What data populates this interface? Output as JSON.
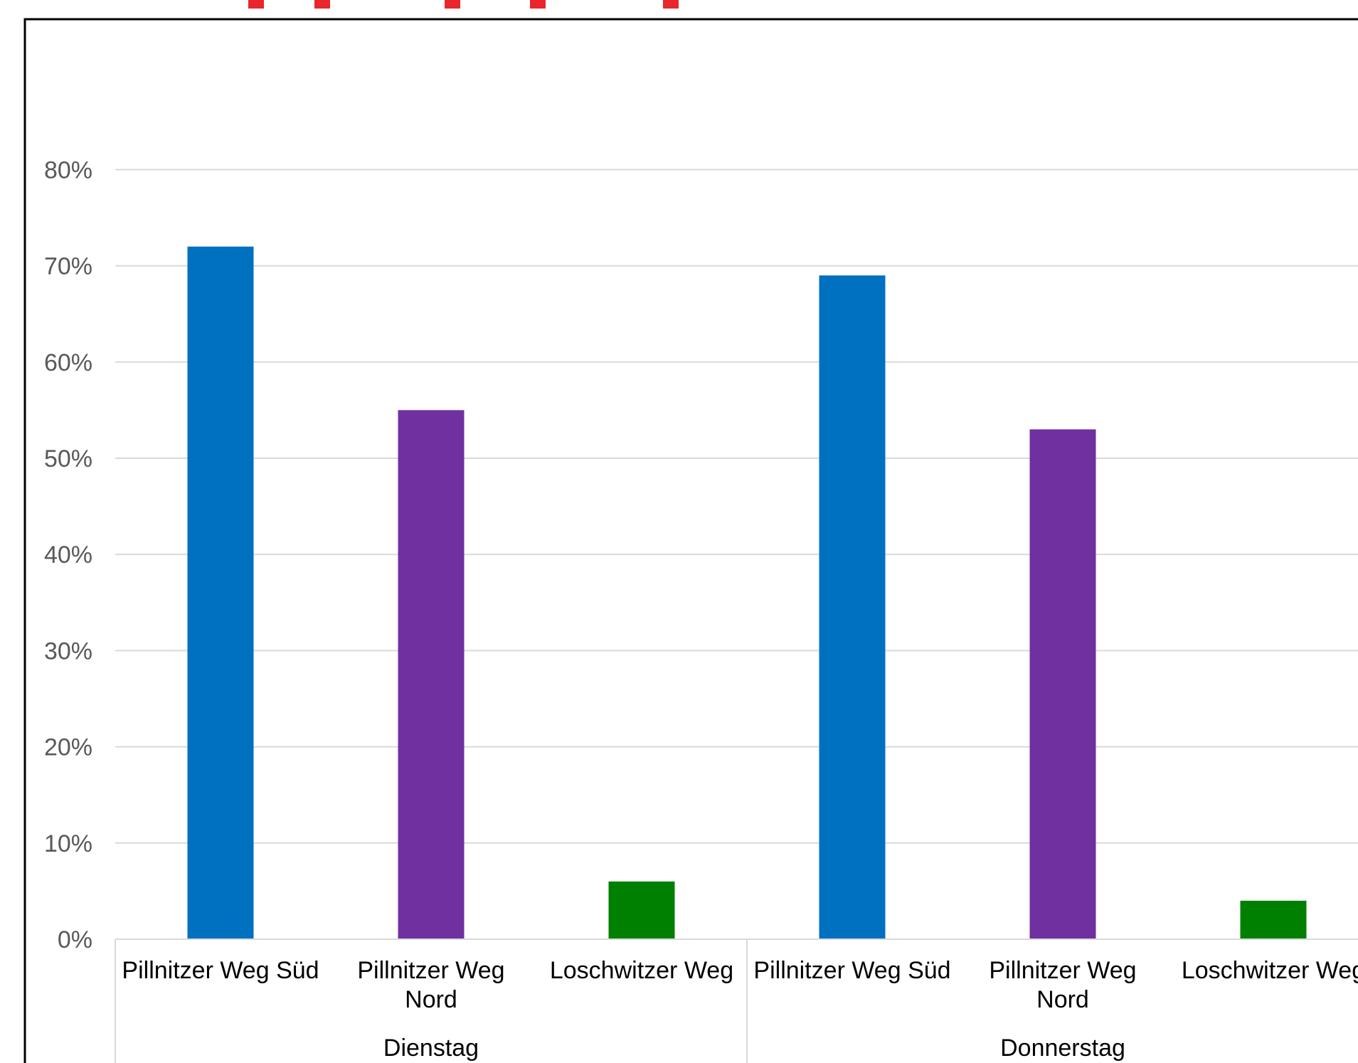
{
  "chart_data": {
    "type": "bar",
    "title": "",
    "xlabel": "",
    "ylabel": "",
    "ylim": [
      0,
      0.9
    ],
    "yticks": [
      0,
      0.1,
      0.2,
      0.3,
      0.4,
      0.5,
      0.6,
      0.7,
      0.8
    ],
    "ytick_labels": [
      "0%",
      "10%",
      "20%",
      "30%",
      "40%",
      "50%",
      "60%",
      "70%",
      "80%"
    ],
    "grid": true,
    "legend": "none",
    "groups": [
      {
        "name": "Dienstag",
        "categories": [
          {
            "label_lines": [
              "Pillnitzer Weg Süd"
            ],
            "value": 0.72,
            "color": "#0070C0"
          },
          {
            "label_lines": [
              "Pillnitzer Weg",
              "Nord"
            ],
            "value": 0.55,
            "color": "#7030A0"
          },
          {
            "label_lines": [
              "Loschwitzer Weg"
            ],
            "value": 0.06,
            "color": "#008000"
          }
        ]
      },
      {
        "name": "Donnerstag",
        "categories": [
          {
            "label_lines": [
              "Pillnitzer Weg Süd"
            ],
            "value": 0.69,
            "color": "#0070C0"
          },
          {
            "label_lines": [
              "Pillnitzer Weg",
              "Nord"
            ],
            "value": 0.53,
            "color": "#7030A0"
          },
          {
            "label_lines": [
              "Loschwitzer Weg"
            ],
            "value": 0.04,
            "color": "#008000"
          }
        ]
      }
    ]
  },
  "colors": {
    "gridline": "#D9D9D9",
    "frame": "#000000",
    "title_fragment": "#E8262B"
  }
}
